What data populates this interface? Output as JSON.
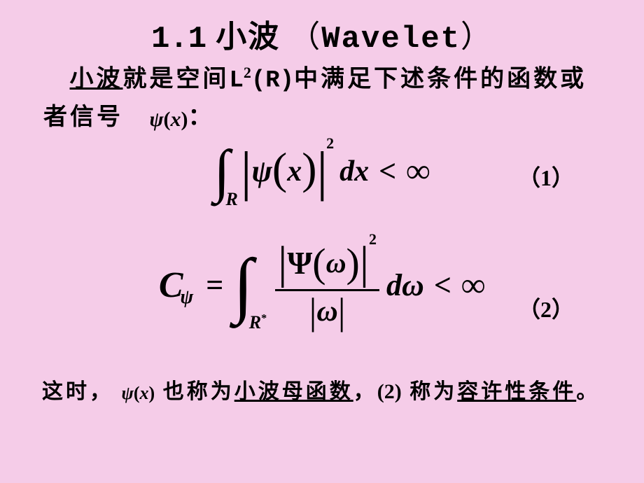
{
  "colors": {
    "background": "#f5cce8",
    "text": "#000000"
  },
  "title": {
    "number": "1.1",
    "cn": "小波",
    "lparen": "（",
    "en": "Wavelet",
    "rparen": "）"
  },
  "intro": {
    "part1_underline": "小波",
    "part2": "就是空间",
    "L": "L",
    "sup": "2",
    "R": "(R)",
    "part3": "中满足下述条件的函数或者信号",
    "psi": "ψ",
    "psi_paren_l": "(",
    "psi_x": "x",
    "psi_paren_r": ")",
    "colon": "："
  },
  "eq1": {
    "int": "∫",
    "int_sub": "R",
    "abs_l": "|",
    "psi": "ψ",
    "lparen": "(",
    "x": "x",
    "rparen": ")",
    "abs_r": "|",
    "exp": "2",
    "dx": "dx",
    "lt": "<",
    "inf": "∞",
    "num": "（1）"
  },
  "eq2": {
    "C": "C",
    "C_sub": "ψ",
    "eq": "=",
    "int": "∫",
    "int_sub": "R",
    "int_sub_star": "*",
    "num_abs_l": "|",
    "Psi": "Ψ",
    "lparen": "(",
    "omega": "ω",
    "rparen": ")",
    "num_abs_r": "|",
    "exp": "2",
    "den_abs_l": "|",
    "den_omega": "ω",
    "den_abs_r": "|",
    "d": "d",
    "d_omega": "ω",
    "lt": "<",
    "inf": "∞",
    "num": "（2）"
  },
  "footer": {
    "part1": "这时，",
    "psi": "ψ",
    "psi_l": "(",
    "psi_x": "x",
    "psi_r": ")",
    "part2": " 也称为",
    "mother": "小波母函数",
    "comma": "，",
    "ref": "(2)",
    "part3": " 称为",
    "admiss": "容许性条件",
    "period": "。"
  }
}
